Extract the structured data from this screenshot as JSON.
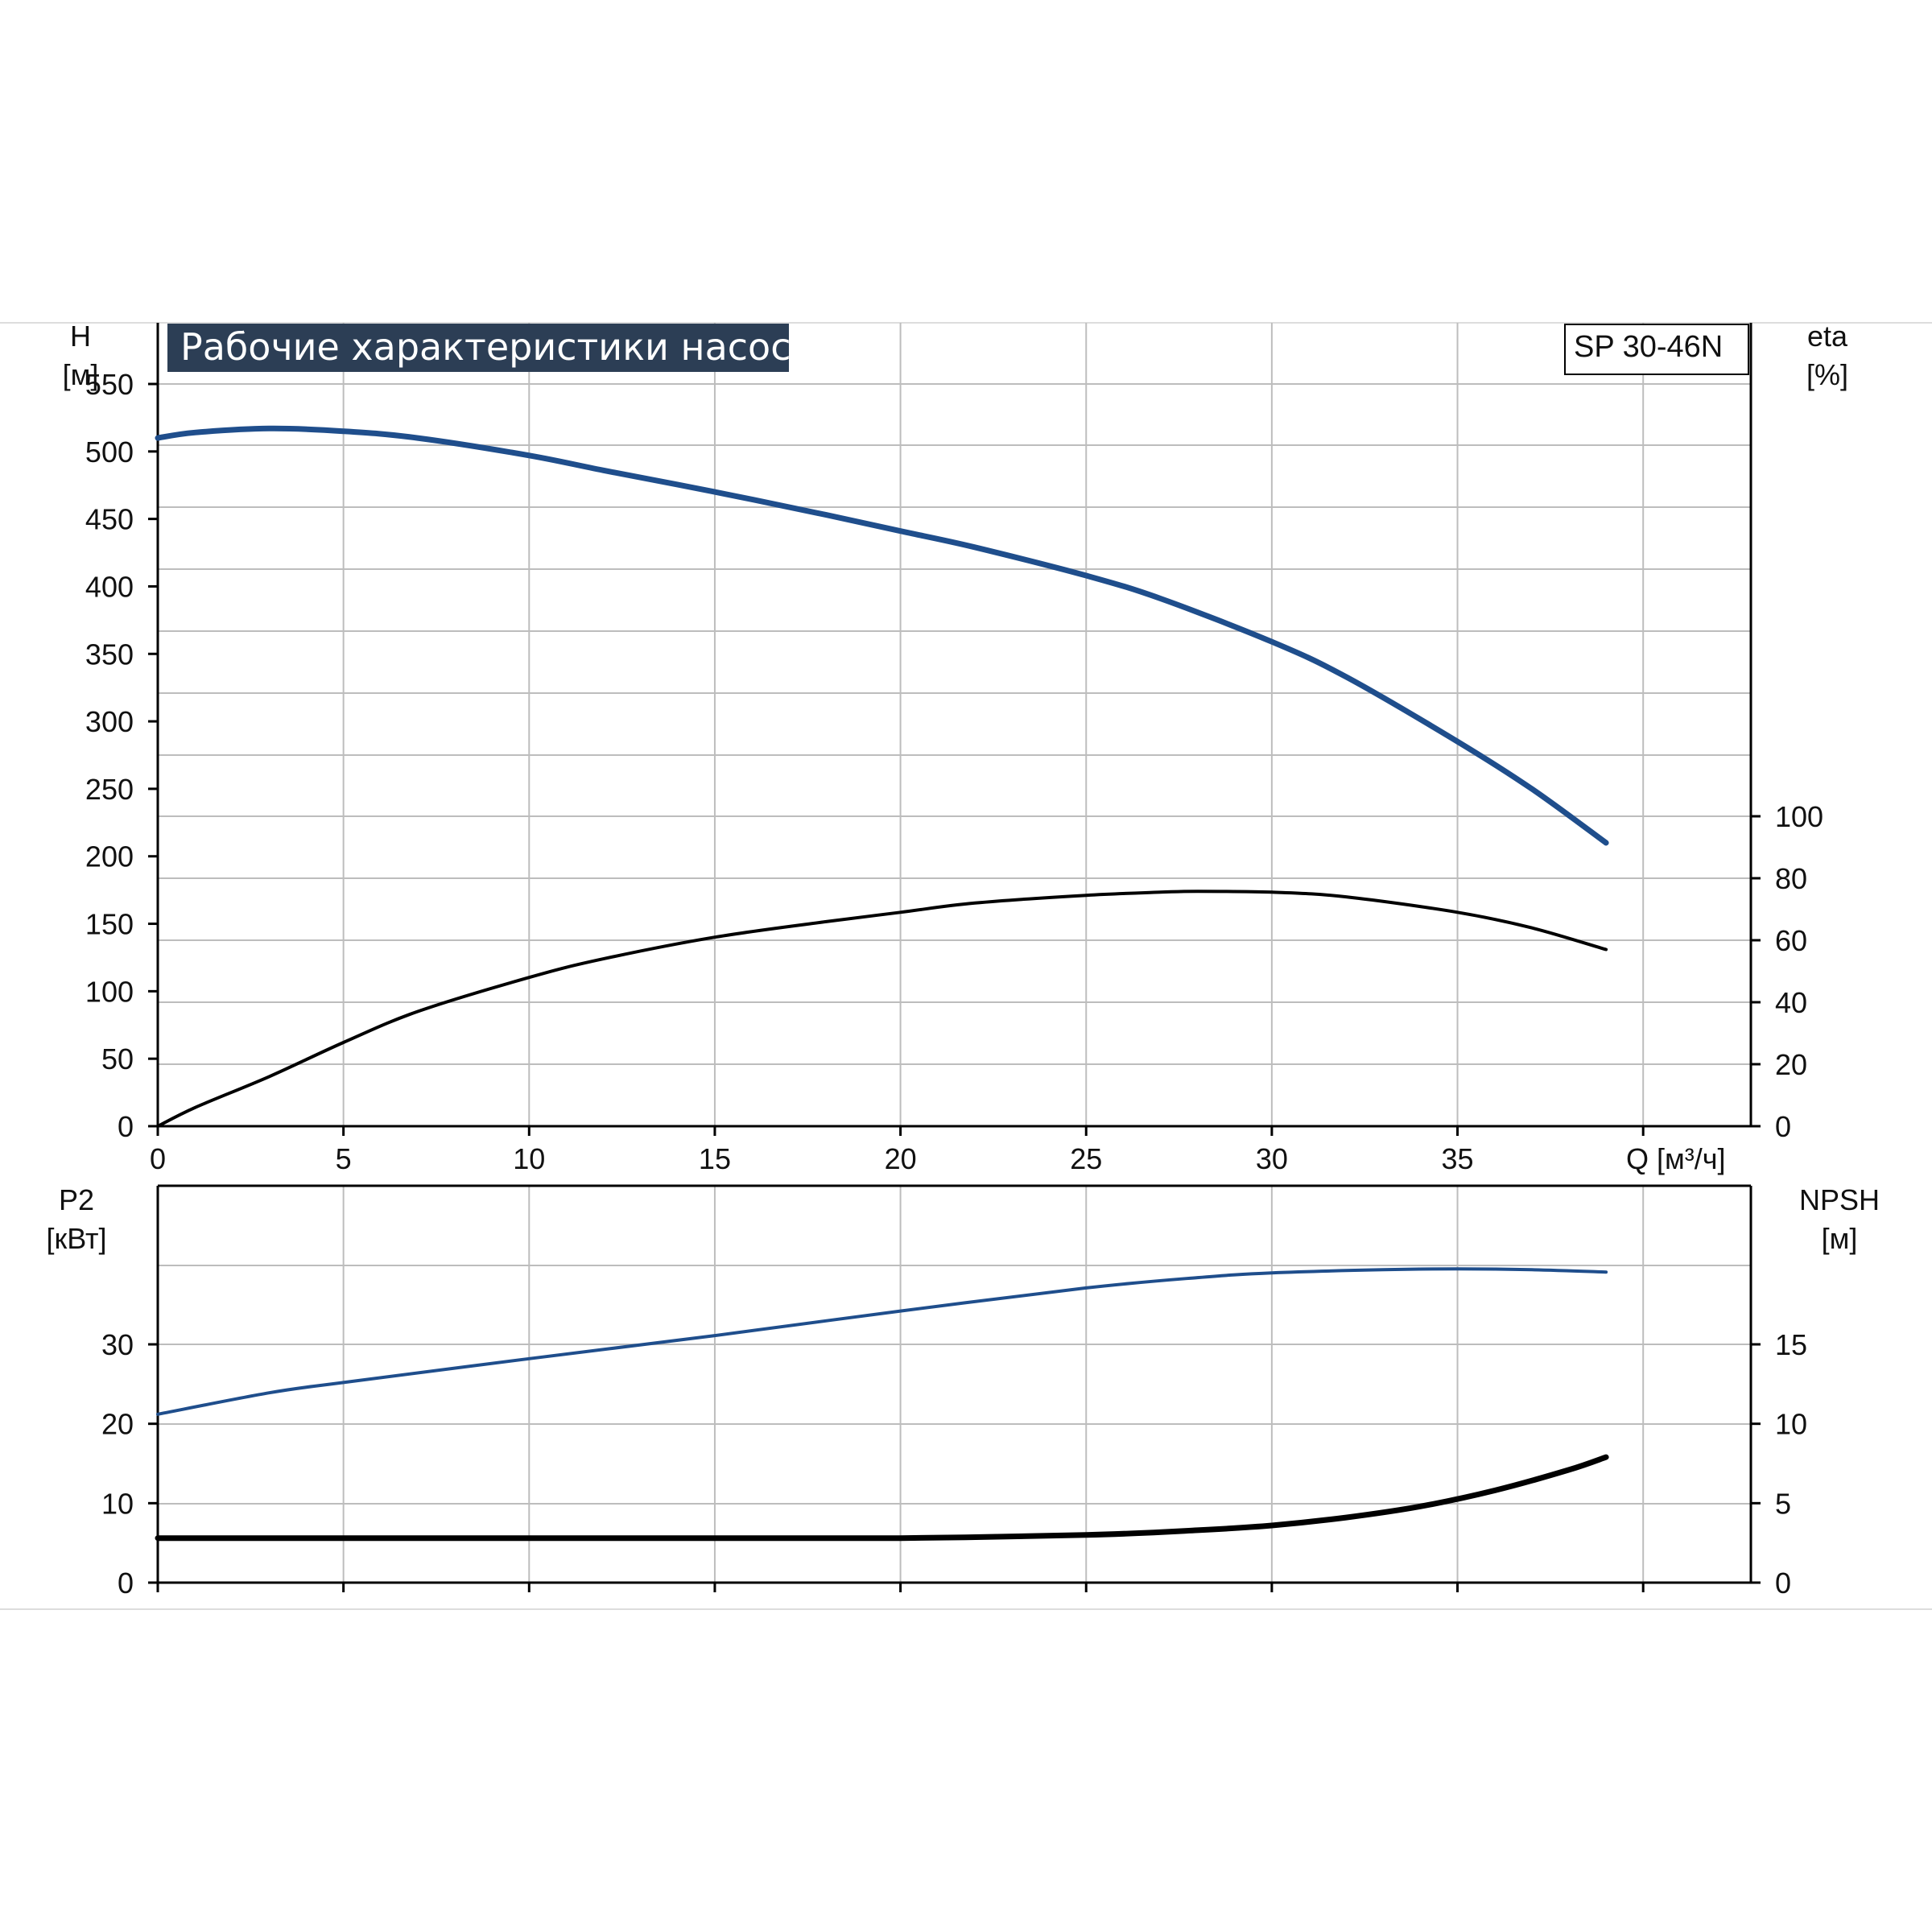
{
  "colors": {
    "grid": "#bdbdbd",
    "axis": "#000000",
    "blue": "#1f4e8c",
    "black": "#000000",
    "title_bg": "#2c3e55",
    "title_fg": "#ffffff"
  },
  "title": "Рабочие характеристики насоса",
  "model": "SP 30-46N",
  "chart_data": [
    {
      "type": "line",
      "x_label": "Q [м³/ч]",
      "x_ticks": [
        "0",
        "5",
        "10",
        "15",
        "20",
        "25",
        "30",
        "35"
      ],
      "xlim": [
        0,
        43
      ],
      "grid": true,
      "y_left": {
        "label_line1": "H",
        "label_line2": "[м]",
        "lim": [
          0,
          600
        ],
        "ticks": [
          "0",
          "50",
          "100",
          "150",
          "200",
          "250",
          "300",
          "350",
          "400",
          "450",
          "500",
          "550"
        ]
      },
      "y_right": {
        "label_line1": "eta",
        "label_line2": "[%]",
        "lim": [
          0,
          260
        ],
        "ticks": [
          "0",
          "20",
          "40",
          "60",
          "80",
          "100"
        ]
      },
      "series": [
        {
          "axis": "left",
          "color": "blue",
          "x": [
            0,
            1,
            3,
            5,
            7,
            10,
            12,
            15,
            18,
            20,
            22,
            25,
            27,
            30,
            32,
            35,
            37,
            39
          ],
          "y": [
            510,
            514,
            517,
            515,
            510,
            497,
            486,
            470,
            453,
            441,
            429,
            408,
            391,
            359,
            333,
            285,
            250,
            210
          ]
        },
        {
          "axis": "right",
          "color": "black",
          "x": [
            0,
            1,
            3,
            5,
            7,
            10,
            12,
            15,
            18,
            20,
            22,
            25,
            27,
            28,
            30,
            32,
            35,
            37,
            39
          ],
          "y": [
            0,
            6,
            16,
            27,
            37,
            48,
            54,
            61,
            66,
            69,
            72,
            74.5,
            75.5,
            75.8,
            75.5,
            74,
            69,
            64,
            57
          ]
        }
      ]
    },
    {
      "type": "line",
      "xlim": [
        0,
        43
      ],
      "grid": true,
      "y_left": {
        "label_line1": "P2",
        "label_line2": "[кВт]",
        "lim": [
          0,
          40
        ],
        "ticks": [
          "0",
          "10",
          "20",
          "30"
        ]
      },
      "y_right": {
        "label_line1": "NPSH",
        "label_line2": "[м]",
        "lim": [
          0,
          20
        ],
        "ticks": [
          "0",
          "5",
          "10",
          "15"
        ]
      },
      "series": [
        {
          "axis": "left",
          "color": "blue",
          "x": [
            0,
            3,
            5,
            10,
            15,
            20,
            25,
            28,
            30,
            33,
            35,
            37,
            39
          ],
          "y": [
            21.2,
            23.9,
            25.2,
            28.2,
            31.1,
            34.2,
            37.1,
            38.4,
            39.0,
            39.4,
            39.5,
            39.4,
            39.1
          ]
        },
        {
          "axis": "right",
          "color": "black",
          "x": [
            0,
            2.7,
            5,
            10,
            15,
            20,
            25,
            28,
            30,
            32,
            34,
            36,
            38,
            39
          ],
          "y": [
            2.8,
            2.8,
            2.8,
            2.8,
            2.8,
            2.8,
            3.0,
            3.3,
            3.6,
            4.1,
            4.8,
            5.8,
            7.1,
            7.9
          ]
        }
      ]
    }
  ]
}
